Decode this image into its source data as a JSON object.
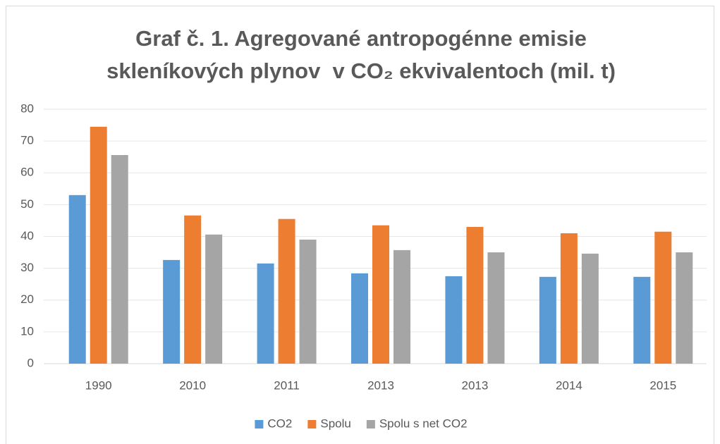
{
  "chart_data": {
    "type": "bar",
    "title": [
      "Graf č. 1. Agregované antropogénne emisie",
      "skleníkových plynov  v CO₂ ekvivalentoch (mil. t)"
    ],
    "categories": [
      "1990",
      "2010",
      "2011",
      "2013",
      "2013",
      "2014",
      "2015"
    ],
    "series": [
      {
        "name": "CO2",
        "color": "#5b9bd5",
        "values": [
          53.0,
          32.6,
          31.5,
          28.4,
          27.5,
          27.3,
          27.3
        ]
      },
      {
        "name": "Spolu",
        "color": "#ed7d31",
        "values": [
          74.5,
          46.6,
          45.5,
          43.5,
          43.0,
          41.0,
          41.5
        ]
      },
      {
        "name": "Spolu s net CO2",
        "color": "#a5a5a5",
        "values": [
          65.6,
          40.6,
          39.0,
          35.7,
          35.0,
          34.6,
          35.0
        ]
      }
    ],
    "ylim": [
      0,
      80
    ],
    "yticks": [
      0,
      10,
      20,
      30,
      40,
      50,
      60,
      70,
      80
    ],
    "grid": true,
    "legend": "bottom"
  }
}
